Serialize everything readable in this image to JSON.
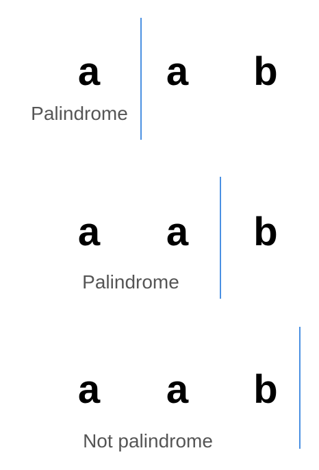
{
  "colors": {
    "letter": "#000000",
    "result_text": "#555555",
    "divider": "#4A90E2"
  },
  "rows": [
    {
      "letters": [
        "a",
        "a",
        "b"
      ],
      "result": "Palindrome",
      "divider_after_letter": 1
    },
    {
      "letters": [
        "a",
        "a",
        "b"
      ],
      "result": "Palindrome",
      "divider_after_letter": 2
    },
    {
      "letters": [
        "a",
        "a",
        "b"
      ],
      "result": "Not palindrome",
      "divider_after_letter": 3
    }
  ]
}
